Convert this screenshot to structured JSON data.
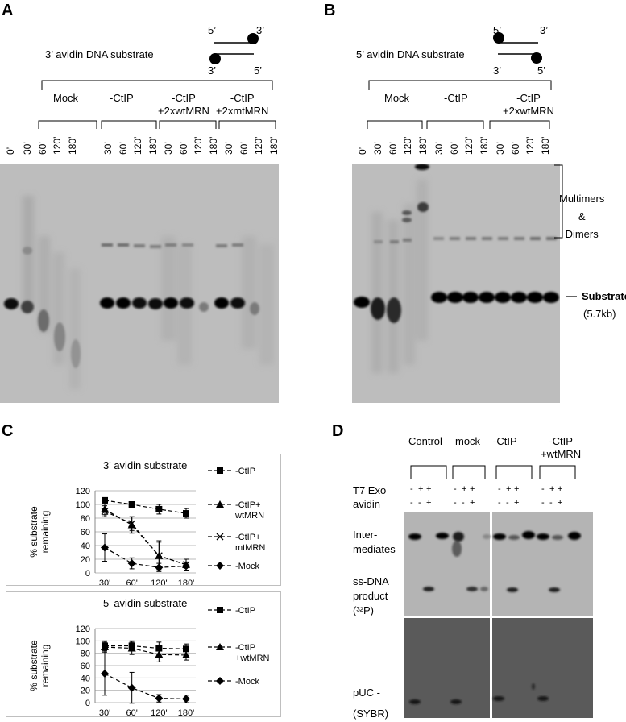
{
  "panels": {
    "A": {
      "letter": "A",
      "title": "3’ avidin  DNA substrate",
      "strand_labels": {
        "top_left": "5’",
        "top_right": "3’",
        "bot_left": "3’",
        "bot_right": "5’"
      },
      "groups": [
        "Mock",
        "-CtIP",
        "-CtIP\n+2xwtMRN",
        "-CtIP\n+2xmtMRN"
      ],
      "time_zero": "0’",
      "times": [
        "30’",
        "60’",
        "120’",
        "180’"
      ]
    },
    "B": {
      "letter": "B",
      "title": "5’ avidin  DNA substrate",
      "strand_labels": {
        "top_left": "5’",
        "top_right": "3’",
        "bot_left": "3’",
        "bot_right": "5’"
      },
      "groups": [
        "Mock",
        "-CtIP",
        "-CtIP\n+2xwtMRN"
      ],
      "time_zero": "0’",
      "times": [
        "30’",
        "60’",
        "120’",
        "180’"
      ],
      "side_label_multimers": "Multimers\n&\nDimers",
      "side_label_substrate": "Substrate",
      "side_label_size": "(5.7kb)"
    },
    "C": {
      "letter": "C",
      "y_label": "% substrate\nremaining"
    },
    "D": {
      "letter": "D",
      "groups": [
        "Control",
        "mock",
        "-CtIP",
        "-CtIP\n+wtMRN"
      ],
      "row_t7": "T7 Exo",
      "row_avidin": "avidin",
      "t7_signs": [
        "-",
        "+",
        "+"
      ],
      "avidin_signs": [
        "-",
        "-",
        "+"
      ],
      "label_intermediates": "Inter-\nmediates",
      "label_ssdna": "ss-DNA\nproduct\n(³²P)",
      "label_puc": "pUC -",
      "label_sybr": "(SYBR)"
    }
  },
  "chart_data": [
    {
      "type": "line",
      "title": "3' avidin substrate",
      "ylabel": "% substrate remaining",
      "categories": [
        "30'",
        "60'",
        "120'",
        "180'"
      ],
      "yticks": [
        "0",
        "20",
        "40",
        "60",
        "80",
        "100",
        "120"
      ],
      "ylim": [
        0,
        120
      ],
      "grid": true,
      "legend_position": "right",
      "series": [
        {
          "name": "-CtIP",
          "marker": "square",
          "values": [
            106,
            100,
            93,
            87
          ],
          "errors": [
            3,
            3,
            7,
            7
          ]
        },
        {
          "name": "-CtIP+\nwtMRN",
          "marker": "triangle",
          "values": [
            93,
            70,
            25,
            12
          ],
          "errors": [
            8,
            12,
            22,
            8
          ]
        },
        {
          "name": "-CtIP+\nmtMRN",
          "marker": "x",
          "values": [
            90,
            72,
            25,
            12
          ],
          "errors": [
            8,
            10,
            20,
            8
          ]
        },
        {
          "name": "-Mock",
          "marker": "diamond",
          "values": [
            37,
            14,
            8,
            10
          ],
          "errors": [
            20,
            8,
            6,
            6
          ]
        }
      ]
    },
    {
      "type": "line",
      "title": "5' avidin substrate",
      "ylabel": "% substrate remaining",
      "categories": [
        "30'",
        "60'",
        "120'",
        "180'"
      ],
      "yticks": [
        "0",
        "20",
        "40",
        "60",
        "80",
        "100",
        "120"
      ],
      "ylim": [
        0,
        120
      ],
      "grid": true,
      "legend_position": "right",
      "series": [
        {
          "name": "-CtIP",
          "marker": "square",
          "values": [
            92,
            92,
            88,
            87
          ],
          "errors": [
            8,
            8,
            10,
            8
          ]
        },
        {
          "name": "-CtIP\n+wtMRN",
          "marker": "triangle",
          "values": [
            90,
            88,
            78,
            77
          ],
          "errors": [
            8,
            10,
            12,
            8
          ]
        },
        {
          "name": "-Mock",
          "marker": "diamond",
          "values": [
            47,
            24,
            7,
            6
          ],
          "errors": [
            35,
            25,
            6,
            6
          ]
        }
      ]
    }
  ]
}
